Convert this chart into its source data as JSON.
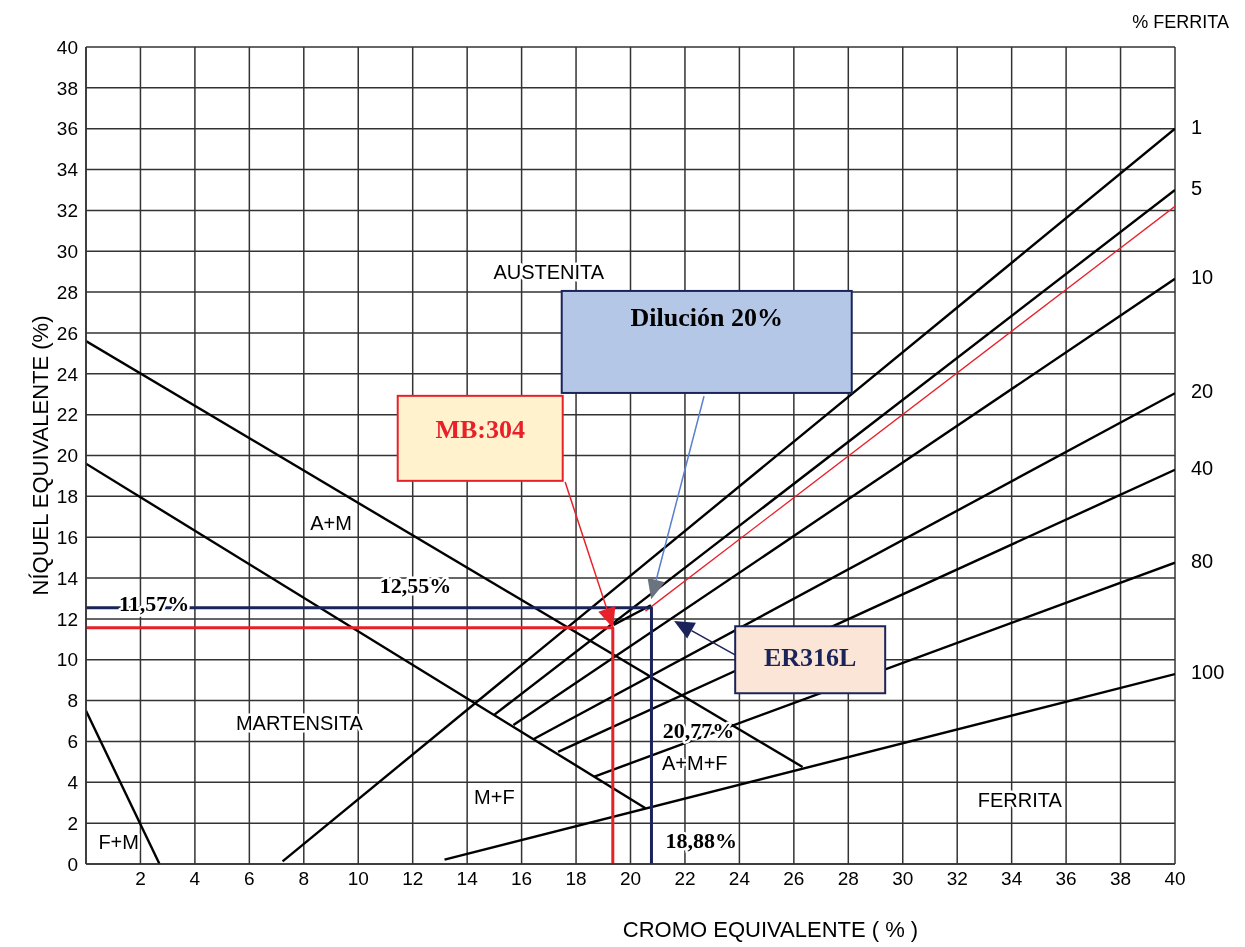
{
  "chart_data": {
    "type": "line",
    "xlabel": "CROMO EQUIVALENTE ( % )",
    "ylabel": "NÍQUEL EQUIVALENTE (%)",
    "legend_title": "% FERRITA",
    "xlim": [
      0,
      40
    ],
    "xticks": [
      {
        "value": 0,
        "label": null
      },
      2,
      4,
      6,
      8,
      10,
      12,
      14,
      16,
      18,
      20,
      22,
      24,
      26,
      28,
      30,
      32,
      34,
      36,
      38,
      40
    ],
    "ylim": [
      0,
      40
    ],
    "yticks": [
      0,
      2,
      4,
      6,
      8,
      10,
      12,
      14,
      16,
      18,
      20,
      22,
      24,
      26,
      28,
      30,
      32,
      34,
      36,
      38,
      40
    ],
    "grid": true,
    "marker": "none",
    "series": [
      {
        "name": "1",
        "color": "#000000",
        "x": [
          7.22,
          40
        ],
        "values": [
          0.13,
          36
        ]
      },
      {
        "name": "5",
        "color": "#000000",
        "x": [
          14.98,
          40
        ],
        "values": [
          7.29,
          33
        ]
      },
      {
        "name": "10",
        "color": "#000000",
        "x": [
          15.7,
          40
        ],
        "values": [
          6.8,
          28.65
        ]
      },
      {
        "name": "20",
        "color": "#000000",
        "x": [
          16.43,
          40
        ],
        "values": [
          6.11,
          23.05
        ]
      },
      {
        "name": "40",
        "color": "#000000",
        "x": [
          17.34,
          40
        ],
        "values": [
          5.49,
          19.3
        ]
      },
      {
        "name": "80",
        "color": "#000000",
        "x": [
          18.65,
          40
        ],
        "values": [
          4.27,
          14.75
        ]
      },
      {
        "name": "100",
        "color": "#000000",
        "x": [
          13.17,
          40
        ],
        "values": [
          0.21,
          9.3
        ]
      },
      {
        "color": "#000000",
        "x": [
          0,
          26.32
        ],
        "values": [
          25.6,
          4.75
        ]
      },
      {
        "color": "#000000",
        "x": [
          0,
          20.55
        ],
        "values": [
          19.6,
          2.73
        ]
      },
      {
        "color": "#000000",
        "x": [
          0,
          2.7
        ],
        "values": [
          7.5,
          0
        ]
      },
      {
        "color": "#000000",
        "x": [
          19.38,
          20.75
        ],
        "values": [
          11.71,
          12.67
        ]
      },
      {
        "color": "#e8202a",
        "x": [
          20.55,
          40
        ],
        "values": [
          12.38,
          32.2
        ]
      },
      {
        "color": "#e8202a",
        "x": [
          0,
          19.35,
          19.35
        ],
        "values": [
          11.57,
          11.57,
          0
        ]
      },
      {
        "color": "#1b2458",
        "x": [
          0,
          20.77,
          20.77
        ],
        "values": [
          12.55,
          12.55,
          0
        ]
      }
    ],
    "annotations": [
      "Dilución 20%",
      "MB:304",
      "ER316L",
      "12,55%",
      "11,57%",
      "20,77%",
      "18,88%",
      "AUSTENITA",
      "A+M",
      "MARTENSITA",
      "M+F",
      "F+M",
      "A+M+F",
      "FERRITA"
    ]
  }
}
